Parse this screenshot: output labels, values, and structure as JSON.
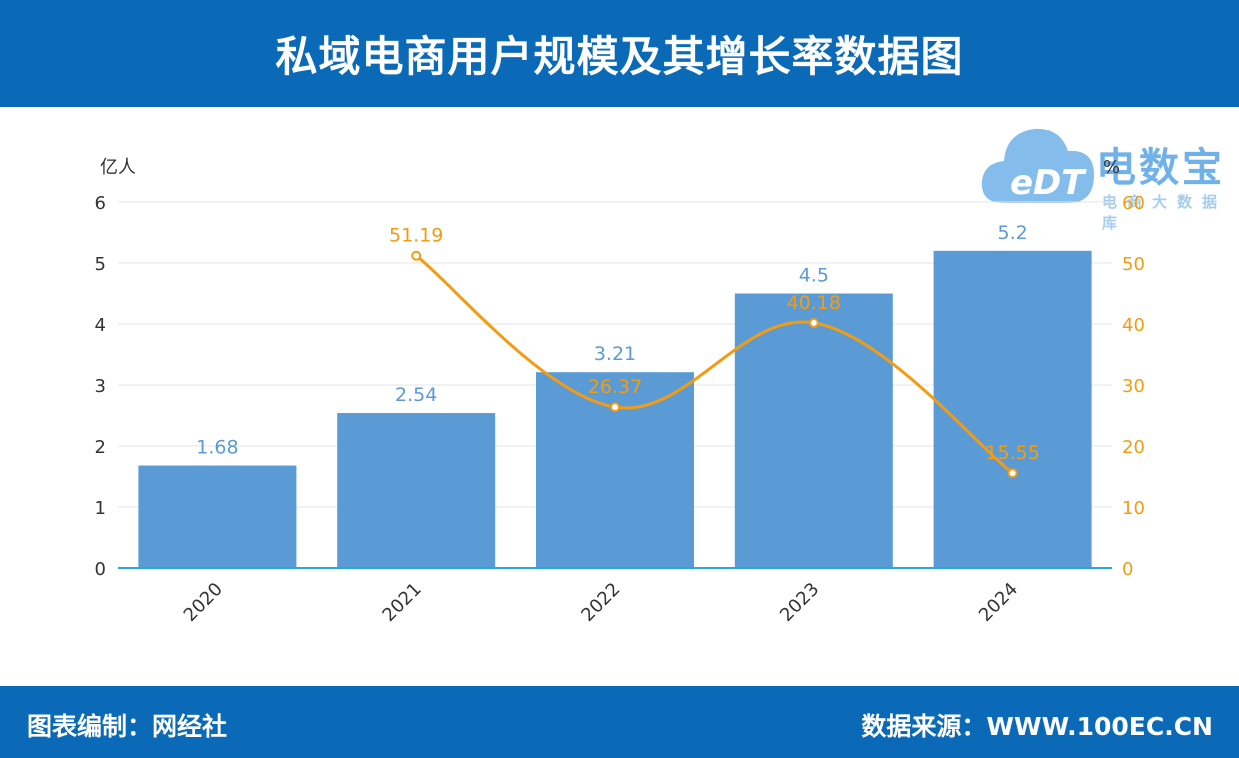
{
  "header": {
    "title": "私域电商用户规模及其增长率数据图"
  },
  "footer": {
    "left": "图表编制：网经社",
    "right": "数据来源：WWW.100EC.CN"
  },
  "watermark": {
    "title": "电数宝",
    "subtitle": "电商大数据库",
    "logo_text": "eDT",
    "logo_icon": "cloud-logo-icon"
  },
  "chart_data": {
    "type": "bar",
    "categories": [
      "2020",
      "2021",
      "2022",
      "2023",
      "2024"
    ],
    "series": [
      {
        "type": "bar",
        "axis": "left",
        "color": "#5b9bd5",
        "label_color": "#5b9bd5",
        "values": [
          1.68,
          2.54,
          3.21,
          4.5,
          5.2
        ],
        "labels": [
          "1.68",
          "2.54",
          "3.21",
          "4.5",
          "5.2"
        ]
      },
      {
        "type": "line",
        "axis": "right",
        "color": "#f39c12",
        "label_color": "#f39c12",
        "values": [
          null,
          51.19,
          26.37,
          40.18,
          15.55
        ],
        "labels": [
          "",
          "51.19",
          "26.37",
          "40.18",
          "15.55"
        ]
      }
    ],
    "y_left": {
      "unit": "亿人",
      "min": 0,
      "max": 6,
      "ticks": [
        0,
        1,
        2,
        3,
        4,
        5,
        6
      ],
      "color": "#333333"
    },
    "y_right": {
      "unit": "%",
      "min": 0,
      "max": 60,
      "ticks": [
        0,
        10,
        20,
        30,
        40,
        50,
        60
      ],
      "color": "#f39c12"
    },
    "grid": true,
    "legend": "none"
  }
}
